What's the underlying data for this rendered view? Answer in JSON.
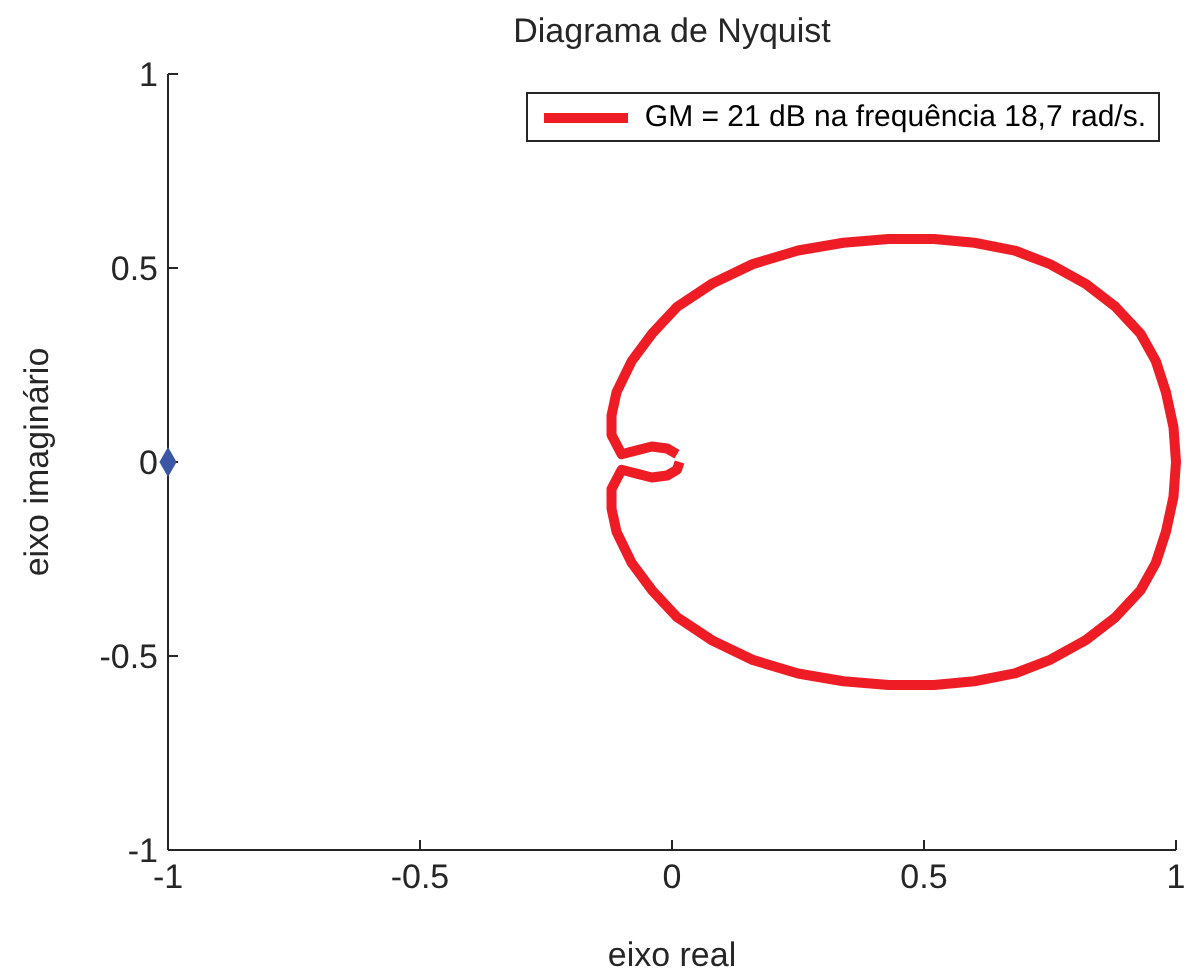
{
  "chart_data": {
    "type": "line",
    "title": "Diagrama de Nyquist",
    "xlabel": "eixo real",
    "ylabel": "eixo imaginário",
    "xlim": [
      -1,
      1
    ],
    "xticks": [
      -1,
      -0.5,
      0,
      0.5,
      1
    ],
    "ylim": [
      -1,
      1
    ],
    "yticks": [
      -1,
      -0.5,
      0,
      0.5,
      1
    ],
    "grid": false,
    "legend": "top right",
    "series": [
      {
        "name": "GM = 21 dB na frequência 18,7 rad/s.",
        "color": "#ee1c25",
        "marker": "none",
        "line_style": "solid",
        "x": [
          0.015,
          0.01,
          -0.01,
          -0.04,
          -0.07,
          -0.1,
          -0.12,
          -0.12,
          -0.11,
          -0.08,
          -0.04,
          0.01,
          0.08,
          0.16,
          0.25,
          0.34,
          0.43,
          0.52,
          0.6,
          0.68,
          0.75,
          0.82,
          0.88,
          0.93,
          0.96,
          0.98,
          0.995,
          1,
          0.995,
          0.98,
          0.96,
          0.93,
          0.88,
          0.82,
          0.75,
          0.68,
          0.6,
          0.52,
          0.43,
          0.34,
          0.25,
          0.16,
          0.08,
          0.01,
          -0.04,
          -0.08,
          -0.11,
          -0.12,
          -0.12,
          -0.1,
          -0.07,
          -0.04,
          -0.01,
          0.01
        ],
        "values": [
          0,
          -0.02,
          -0.035,
          -0.04,
          -0.03,
          -0.02,
          -0.07,
          -0.12,
          -0.18,
          -0.26,
          -0.33,
          -0.4,
          -0.46,
          -0.51,
          -0.545,
          -0.565,
          -0.575,
          -0.575,
          -0.565,
          -0.545,
          -0.51,
          -0.46,
          -0.4,
          -0.33,
          -0.26,
          -0.18,
          -0.09,
          0,
          0.09,
          0.18,
          0.26,
          0.33,
          0.4,
          0.46,
          0.51,
          0.545,
          0.565,
          0.575,
          0.575,
          0.565,
          0.545,
          0.51,
          0.46,
          0.4,
          0.33,
          0.26,
          0.18,
          0.12,
          0.07,
          0.02,
          0.03,
          0.04,
          0.035,
          0.02
        ]
      },
      {
        "type": "scatter",
        "color": "#3a56a5",
        "marker": "diamond",
        "x": [
          -1
        ],
        "values": [
          0
        ]
      }
    ]
  }
}
